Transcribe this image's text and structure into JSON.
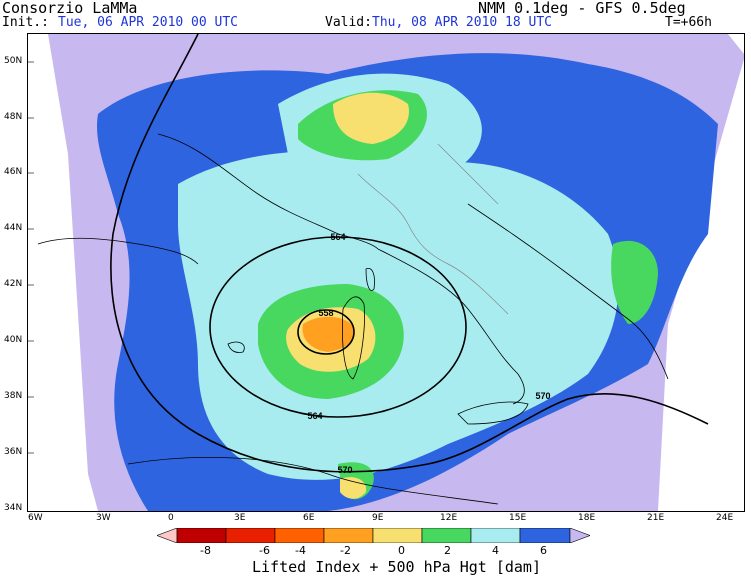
{
  "header": {
    "org": "Consorzio LaMMa",
    "model": "NMM 0.1deg - GFS 0.5deg",
    "init_label": "Init.:",
    "init_value": "Tue, 06 APR 2010   00 UTC",
    "valid_label": "Valid:",
    "valid_value": "Thu, 08 APR 2010   18 UTC",
    "lead_time": "T=+66h"
  },
  "map": {
    "lat_labels": [
      "50N",
      "48N",
      "46N",
      "44N",
      "42N",
      "40N",
      "38N",
      "36N",
      "34N"
    ],
    "lon_labels": [
      "6W",
      "3W",
      "0",
      "3E",
      "6E",
      "9E",
      "12E",
      "15E",
      "18E",
      "21E",
      "24E"
    ],
    "contour_labels": [
      "564",
      "558",
      "564",
      "570",
      "570"
    ],
    "colors": {
      "lavender": "#c8b8f0",
      "blue": "#2e64e0",
      "lightblue": "#a8ecf0",
      "green": "#48d860",
      "yellow": "#f8e070",
      "orange": "#ffa020"
    }
  },
  "colorbar": {
    "labels": [
      "-8",
      "-6",
      "-4",
      "-2",
      "0",
      "2",
      "4",
      "6"
    ],
    "colors": [
      "#ffc8c8",
      "#c00000",
      "#e82000",
      "#ff6000",
      "#ffa020",
      "#f8e070",
      "#48d860",
      "#a8ecf0",
      "#2e64e0",
      "#c8b8f0"
    ]
  },
  "footer": {
    "title": "Lifted Index + 500 hPa Hgt [dam]"
  }
}
